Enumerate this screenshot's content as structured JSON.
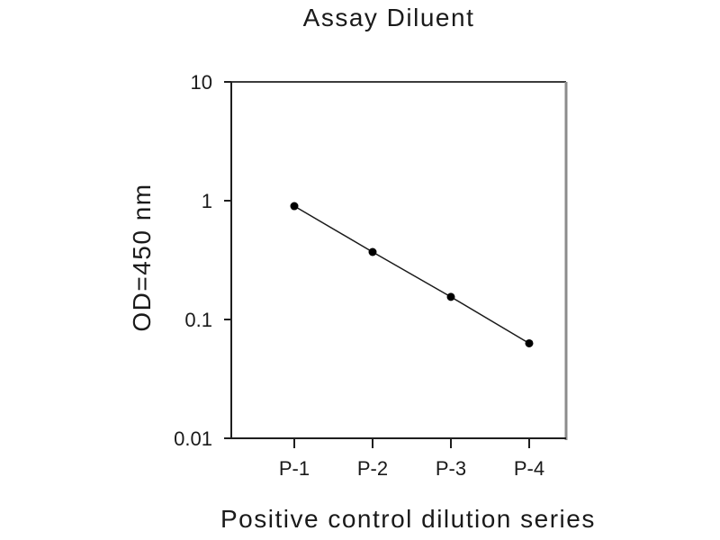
{
  "figure": {
    "title": "Assay Diluent",
    "xlabel": "Positive control dilution series",
    "ylabel": "OD=450 nm"
  },
  "chart_data": {
    "type": "line",
    "title": "Assay Diluent",
    "xlabel": "Positive control dilution series",
    "ylabel": "OD=450 nm",
    "categories": [
      "P-1",
      "P-2",
      "P-3",
      "P-4"
    ],
    "values": [
      0.9,
      0.37,
      0.155,
      0.063
    ],
    "y_scale": "log",
    "ylim": [
      0.01,
      10
    ],
    "y_ticks": [
      10,
      1,
      0.1,
      0.01
    ],
    "y_tick_labels": [
      "10",
      "1",
      "0.1",
      "0.01"
    ],
    "grid": false,
    "legend": false,
    "marker": "filled-circle",
    "colors": {
      "line": "#1a1a1a",
      "marker": "#000000",
      "axis": "#1e1e1e",
      "axis_top": "#3c3c3c",
      "axis_right": "#8c8c8c",
      "background": "#ffffff",
      "text": "#1a1a1a"
    }
  }
}
